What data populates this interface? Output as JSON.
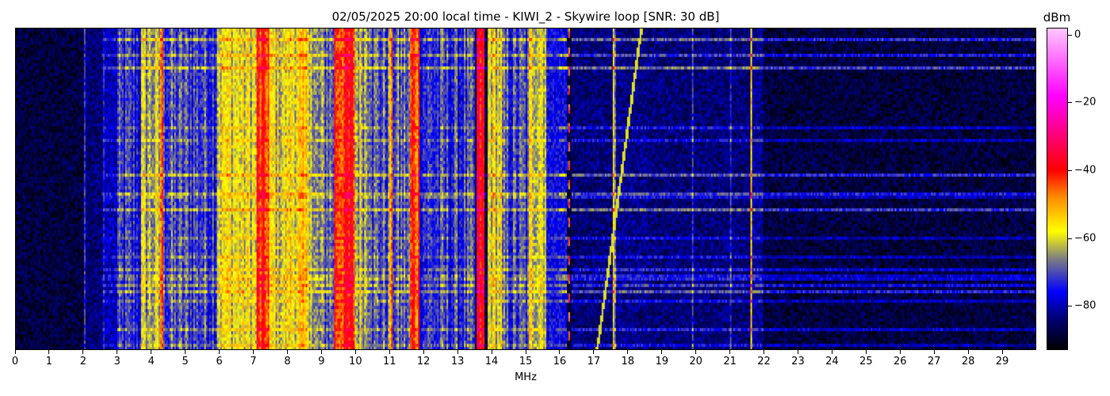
{
  "chart_data": {
    "type": "heatmap",
    "title": "02/05/2025 20:00 local time - KIWI_2 - Skywire loop [SNR: 30 dB]",
    "xlabel": "MHz",
    "ylabel": "",
    "xlim": [
      0,
      30
    ],
    "x_ticks": [
      "0",
      "1",
      "2",
      "3",
      "4",
      "5",
      "6",
      "7",
      "8",
      "9",
      "10",
      "11",
      "12",
      "13",
      "14",
      "15",
      "16",
      "17",
      "18",
      "19",
      "20",
      "21",
      "22",
      "23",
      "24",
      "25",
      "26",
      "27",
      "28",
      "29"
    ],
    "colorbar": {
      "label": "dBm",
      "range": [
        -93,
        2
      ],
      "ticks": [
        "0",
        "−20",
        "−40",
        "−60",
        "−80"
      ],
      "tick_values": [
        0,
        -20,
        -40,
        -60,
        -80
      ],
      "colormap": [
        {
          "dbm": -93,
          "color": "#000000"
        },
        {
          "dbm": -83,
          "color": "#000080"
        },
        {
          "dbm": -76,
          "color": "#0000ff"
        },
        {
          "dbm": -66,
          "color": "#808080"
        },
        {
          "dbm": -58,
          "color": "#ffff00"
        },
        {
          "dbm": -48,
          "color": "#ff8c00"
        },
        {
          "dbm": -40,
          "color": "#ff0000"
        },
        {
          "dbm": -18,
          "color": "#ff00ff"
        },
        {
          "dbm": 2,
          "color": "#ffc8ff"
        }
      ]
    },
    "noise_floor_dbm": -88,
    "bands_mhz_dbm": [
      [
        0.0,
        2.0,
        -88
      ],
      [
        2.0,
        2.05,
        -74
      ],
      [
        2.05,
        2.55,
        -84
      ],
      [
        2.55,
        2.6,
        -72
      ],
      [
        2.6,
        3.0,
        -80
      ],
      [
        3.0,
        3.7,
        -74
      ],
      [
        3.7,
        4.4,
        -64
      ],
      [
        4.25,
        4.35,
        -48
      ],
      [
        4.4,
        5.9,
        -71
      ],
      [
        5.9,
        6.6,
        -59
      ],
      [
        6.6,
        7.1,
        -60
      ],
      [
        7.1,
        7.45,
        -44
      ],
      [
        7.45,
        8.0,
        -60
      ],
      [
        8.0,
        8.7,
        -57
      ],
      [
        8.7,
        9.35,
        -68
      ],
      [
        9.35,
        9.95,
        -42
      ],
      [
        9.95,
        10.5,
        -63
      ],
      [
        10.5,
        11.0,
        -70
      ],
      [
        11.0,
        11.1,
        -52
      ],
      [
        11.1,
        11.6,
        -70
      ],
      [
        11.6,
        11.9,
        -44
      ],
      [
        11.9,
        13.5,
        -73
      ],
      [
        13.55,
        13.8,
        -40
      ],
      [
        13.9,
        14.3,
        -60
      ],
      [
        14.3,
        15.1,
        -72
      ],
      [
        15.1,
        15.6,
        -59
      ],
      [
        15.6,
        16.3,
        -76
      ],
      [
        16.25,
        16.32,
        -48
      ],
      [
        16.35,
        17.55,
        -84
      ],
      [
        17.55,
        17.65,
        -64
      ],
      [
        17.65,
        18.6,
        -83
      ],
      [
        18.6,
        19.9,
        -84
      ],
      [
        19.9,
        19.95,
        -66
      ],
      [
        19.95,
        21.0,
        -84
      ],
      [
        21.0,
        21.05,
        -70
      ],
      [
        21.05,
        21.6,
        -84
      ],
      [
        21.6,
        21.67,
        -58
      ],
      [
        21.67,
        22.0,
        -82
      ],
      [
        22.0,
        30.0,
        -88
      ]
    ],
    "sweep_mhz": {
      "start_top": 18.4,
      "end_bottom": 17.1,
      "dbm": -60
    }
  }
}
